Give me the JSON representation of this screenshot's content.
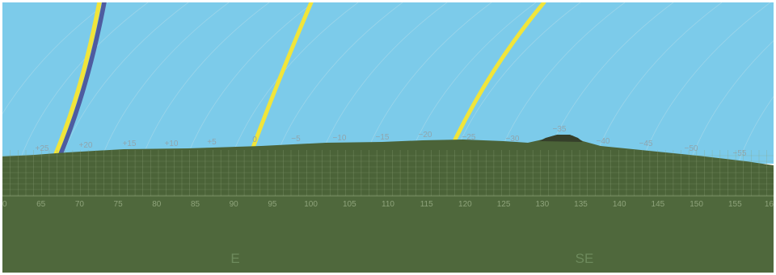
{
  "view": {
    "azimuth_range": [
      60,
      160
    ],
    "colors": {
      "sky": "#7ccbea",
      "ground": "#4f683c",
      "terrain": "#4b6338",
      "peak": "#353f2a",
      "grid": "#8ea37a",
      "path_yellow": "#f1e53a",
      "path_blue": "#4e5ca0"
    }
  },
  "azimuth_ticks": [
    "0",
    "65",
    "70",
    "75",
    "80",
    "85",
    "90",
    "95",
    "100",
    "105",
    "110",
    "115",
    "120",
    "125",
    "130",
    "135",
    "140",
    "145",
    "150",
    "155",
    "16"
  ],
  "declination_labels": [
    "+25",
    "+20",
    "+15",
    "+10",
    "+5",
    "0",
    "−5",
    "−10",
    "−15",
    "−20",
    "−25",
    "−30",
    "−35",
    "−40",
    "−45",
    "−50",
    "−55"
  ],
  "compass": {
    "east": "E",
    "southeast": "SE"
  },
  "sun_paths": [
    {
      "name": "path-far-left-yellow",
      "color": "yellow"
    },
    {
      "name": "path-far-left-blue",
      "color": "blue"
    },
    {
      "name": "path-center-yellow",
      "color": "yellow"
    },
    {
      "name": "path-right-yellow",
      "color": "yellow"
    }
  ]
}
